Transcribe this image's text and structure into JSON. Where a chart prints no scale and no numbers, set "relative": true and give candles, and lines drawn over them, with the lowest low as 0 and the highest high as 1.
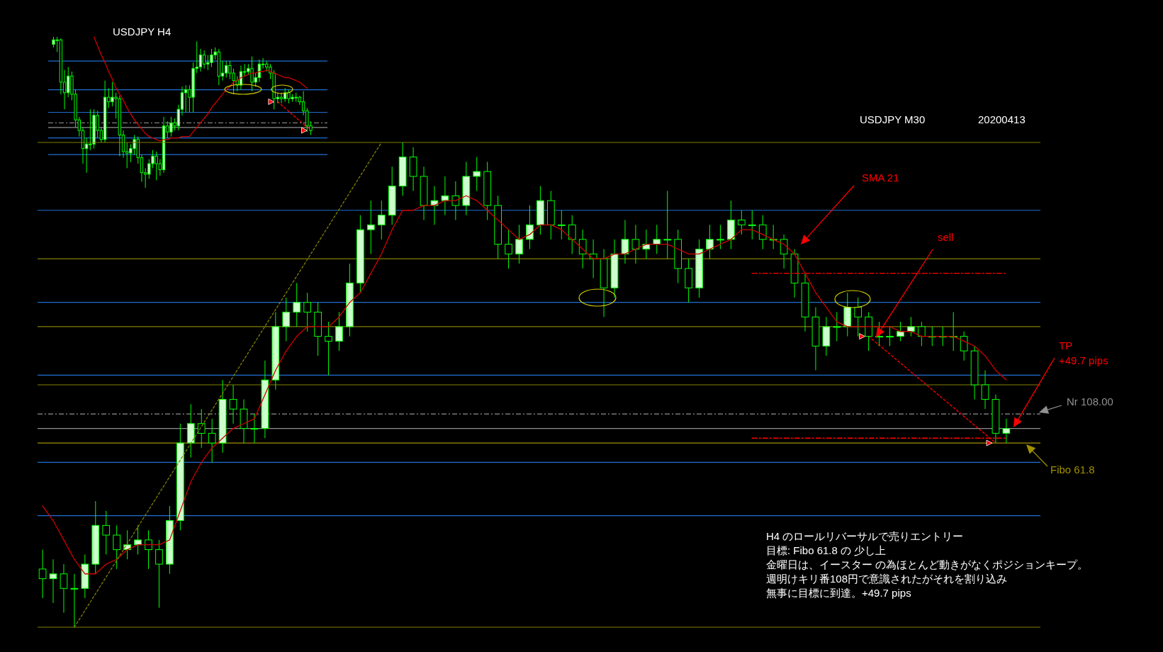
{
  "chart_data": [
    {
      "type": "candlestick",
      "title": "USDJPY H4",
      "relative": true,
      "tick_labels": false,
      "color": "#00ff00",
      "categories": [
        null,
        null,
        null,
        null,
        null,
        null,
        null,
        null,
        null,
        null,
        null,
        null,
        null,
        null,
        null,
        null,
        null,
        null,
        null,
        null,
        null,
        null,
        null,
        null,
        null,
        null,
        null,
        null,
        null,
        null,
        null,
        null,
        null,
        null,
        null,
        null,
        null,
        null,
        null,
        null,
        null,
        null,
        null,
        null,
        null,
        null,
        null,
        null,
        null,
        null,
        null,
        null,
        null,
        null,
        null,
        null,
        null,
        null,
        null,
        null,
        null,
        null,
        null,
        null,
        null,
        null,
        null,
        null,
        null,
        null,
        null
      ],
      "ohlc": [
        [
          0.95,
          1.0,
          0.93,
          0.98
        ],
        [
          0.98,
          1.0,
          0.9,
          0.98
        ],
        [
          0.98,
          0.99,
          0.62,
          0.7
        ],
        [
          0.7,
          0.78,
          0.52,
          0.63
        ],
        [
          0.63,
          0.8,
          0.6,
          0.74
        ],
        [
          0.74,
          0.77,
          0.58,
          0.62
        ],
        [
          0.62,
          0.65,
          0.4,
          0.45
        ],
        [
          0.45,
          0.47,
          0.34,
          0.38
        ],
        [
          0.38,
          0.4,
          0.16,
          0.26
        ],
        [
          0.26,
          0.33,
          0.1,
          0.29
        ],
        [
          0.29,
          0.52,
          0.25,
          0.29
        ],
        [
          0.29,
          0.52,
          0.26,
          0.48
        ],
        [
          0.48,
          0.51,
          0.33,
          0.38
        ],
        [
          0.38,
          0.4,
          0.3,
          0.32
        ],
        [
          0.32,
          0.71,
          0.3,
          0.6
        ],
        [
          0.6,
          0.66,
          0.53,
          0.57
        ],
        [
          0.57,
          0.7,
          0.54,
          0.6
        ],
        [
          0.6,
          0.63,
          0.46,
          0.59
        ],
        [
          0.59,
          0.61,
          0.21,
          0.35
        ],
        [
          0.35,
          0.38,
          0.2,
          0.24
        ],
        [
          0.24,
          0.3,
          0.13,
          0.23
        ],
        [
          0.23,
          0.29,
          0.17,
          0.26
        ],
        [
          0.26,
          0.35,
          0.22,
          0.32
        ],
        [
          0.32,
          0.34,
          0.16,
          0.2
        ],
        [
          0.2,
          0.22,
          0.04,
          0.1
        ],
        [
          0.1,
          0.13,
          0.0,
          0.09
        ],
        [
          0.09,
          0.19,
          0.06,
          0.16
        ],
        [
          0.16,
          0.25,
          0.13,
          0.21
        ],
        [
          0.21,
          0.24,
          0.05,
          0.16
        ],
        [
          0.16,
          0.19,
          0.08,
          0.12
        ],
        [
          0.12,
          0.47,
          0.1,
          0.41
        ],
        [
          0.41,
          0.44,
          0.33,
          0.37
        ],
        [
          0.37,
          0.47,
          0.34,
          0.43
        ],
        [
          0.43,
          0.46,
          0.38,
          0.41
        ],
        [
          0.41,
          0.55,
          0.38,
          0.52
        ],
        [
          0.52,
          0.67,
          0.48,
          0.63
        ],
        [
          0.63,
          0.68,
          0.5,
          0.65
        ],
        [
          0.65,
          0.68,
          0.5,
          0.6
        ],
        [
          0.6,
          0.83,
          0.5,
          0.79
        ],
        [
          0.79,
          0.97,
          0.76,
          0.8
        ],
        [
          0.8,
          0.92,
          0.77,
          0.88
        ],
        [
          0.88,
          0.91,
          0.79,
          0.82
        ],
        [
          0.82,
          0.88,
          0.78,
          0.83
        ],
        [
          0.83,
          0.92,
          0.8,
          0.88
        ],
        [
          0.88,
          0.93,
          0.85,
          0.9
        ],
        [
          0.9,
          0.92,
          0.68,
          0.74
        ],
        [
          0.74,
          0.84,
          0.71,
          0.76
        ],
        [
          0.76,
          0.84,
          0.73,
          0.81
        ],
        [
          0.81,
          0.84,
          0.72,
          0.76
        ],
        [
          0.76,
          0.79,
          0.62,
          0.71
        ],
        [
          0.71,
          0.74,
          0.64,
          0.68
        ],
        [
          0.68,
          0.81,
          0.65,
          0.77
        ],
        [
          0.77,
          0.82,
          0.74,
          0.77
        ],
        [
          0.77,
          0.82,
          0.75,
          0.79
        ],
        [
          0.79,
          0.87,
          0.64,
          0.7
        ],
        [
          0.7,
          0.76,
          0.67,
          0.73
        ],
        [
          0.73,
          0.85,
          0.7,
          0.82
        ],
        [
          0.82,
          0.86,
          0.79,
          0.82
        ],
        [
          0.82,
          0.84,
          0.77,
          0.8
        ],
        [
          0.8,
          0.82,
          0.72,
          0.76
        ],
        [
          0.76,
          0.78,
          0.52,
          0.59
        ],
        [
          0.59,
          0.63,
          0.56,
          0.6
        ],
        [
          0.6,
          0.63,
          0.56,
          0.59
        ],
        [
          0.59,
          0.66,
          0.57,
          0.63
        ],
        [
          0.63,
          0.65,
          0.56,
          0.59
        ],
        [
          0.59,
          0.62,
          0.57,
          0.6
        ],
        [
          0.6,
          0.63,
          0.57,
          0.6
        ],
        [
          0.6,
          0.61,
          0.55,
          0.57
        ],
        [
          0.57,
          0.64,
          0.48,
          0.51
        ],
        [
          0.51,
          0.53,
          0.37,
          0.41
        ],
        [
          0.41,
          0.44,
          0.35,
          0.38
        ]
      ],
      "series": [
        {
          "type": "line",
          "color": "#d00000",
          "values": [
            null,
            null,
            null,
            null,
            null,
            null,
            null,
            null,
            null,
            null,
            null,
            1.0,
            0.94,
            0.88,
            0.83,
            0.77,
            0.72,
            0.66,
            0.62,
            0.58,
            0.53,
            0.49,
            0.45,
            0.42,
            0.39,
            0.36,
            0.34,
            0.33,
            0.32,
            0.31,
            0.32,
            0.32,
            0.33,
            0.33,
            0.33,
            0.34,
            0.34,
            0.34,
            0.37,
            0.4,
            0.43,
            0.46,
            0.49,
            0.53,
            0.56,
            0.59,
            0.62,
            0.65,
            0.67,
            0.7,
            0.71,
            0.73,
            0.74,
            0.75,
            0.76,
            0.76,
            0.77,
            0.77,
            0.78,
            0.77,
            0.76,
            0.75,
            0.74,
            0.73,
            0.73,
            0.72,
            0.71,
            0.7,
            0.68,
            0.66,
            null
          ]
        },
        {
          "type": "line",
          "color": "#ff0000",
          "line_style": "dotted",
          "values": [
            null,
            null,
            null,
            null,
            null,
            null,
            null,
            null,
            null,
            null,
            null,
            null,
            null,
            null,
            null,
            null,
            null,
            null,
            null,
            null,
            null,
            null,
            null,
            null,
            null,
            null,
            null,
            null,
            null,
            null,
            null,
            null,
            null,
            null,
            null,
            null,
            null,
            null,
            null,
            null,
            null,
            null,
            null,
            null,
            null,
            null,
            null,
            null,
            null,
            null,
            null,
            null,
            null,
            null,
            null,
            null,
            null,
            null,
            null,
            null,
            null,
            0.57,
            null,
            null,
            null,
            null,
            null,
            null,
            null,
            null,
            0.38
          ]
        }
      ],
      "ref_lines": [
        {
          "axis": "y",
          "value": 0.84,
          "color": "#1f6fd0"
        },
        {
          "axis": "y",
          "value": 0.65,
          "color": "#1f6fd0"
        },
        {
          "axis": "y",
          "value": 0.5,
          "color": "#1f6fd0"
        },
        {
          "axis": "y",
          "value": 0.33,
          "color": "#1f6fd0"
        },
        {
          "axis": "y",
          "value": 0.22,
          "color": "#1f6fd0"
        },
        {
          "axis": "y",
          "value": 0.43,
          "color": "#808080",
          "line_style": "dashed"
        },
        {
          "axis": "y",
          "value": 0.4,
          "color": "#909090"
        }
      ]
    },
    {
      "type": "candlestick",
      "title": "USDJPY M30",
      "subtitle": "20200413",
      "relative": true,
      "tick_labels": false,
      "color": "#00ff00",
      "categories": [
        null,
        null,
        null,
        null,
        null,
        null,
        null,
        null,
        null,
        null,
        null,
        null,
        null,
        null,
        null,
        null,
        null,
        null,
        null,
        null,
        null,
        null,
        null,
        null,
        null,
        null,
        null,
        null,
        null,
        null,
        null,
        null,
        null,
        null,
        null,
        null,
        null,
        null,
        null,
        null,
        null,
        null,
        null,
        null,
        null,
        null,
        null,
        null,
        null,
        null,
        null,
        null,
        null,
        null,
        null,
        null,
        null,
        null,
        null,
        null,
        null,
        null,
        null,
        null,
        null,
        null,
        null,
        null,
        null,
        null,
        null,
        null,
        null,
        null,
        null,
        null,
        null,
        null,
        null,
        null,
        null,
        null,
        null,
        null,
        null,
        null,
        null,
        null,
        null,
        null,
        null,
        null
      ],
      "ohlc": [
        [
          0.12,
          0.16,
          0.06,
          0.1
        ],
        [
          0.1,
          0.14,
          0.05,
          0.11
        ],
        [
          0.11,
          0.13,
          0.03,
          0.08
        ],
        [
          0.08,
          0.11,
          0.0,
          0.08
        ],
        [
          0.08,
          0.15,
          0.06,
          0.13
        ],
        [
          0.13,
          0.26,
          0.11,
          0.21
        ],
        [
          0.21,
          0.24,
          0.15,
          0.19
        ],
        [
          0.19,
          0.21,
          0.12,
          0.16
        ],
        [
          0.16,
          0.2,
          0.14,
          0.17
        ],
        [
          0.17,
          0.21,
          0.15,
          0.18
        ],
        [
          0.18,
          0.2,
          0.12,
          0.16
        ],
        [
          0.16,
          0.18,
          0.04,
          0.13
        ],
        [
          0.13,
          0.25,
          0.11,
          0.22
        ],
        [
          0.22,
          0.42,
          0.2,
          0.38
        ],
        [
          0.38,
          0.46,
          0.35,
          0.42
        ],
        [
          0.42,
          0.45,
          0.37,
          0.4
        ],
        [
          0.4,
          0.43,
          0.34,
          0.38
        ],
        [
          0.38,
          0.51,
          0.36,
          0.47
        ],
        [
          0.47,
          0.5,
          0.42,
          0.45
        ],
        [
          0.45,
          0.47,
          0.38,
          0.41
        ],
        [
          0.41,
          0.44,
          0.38,
          0.41
        ],
        [
          0.41,
          0.55,
          0.39,
          0.51
        ],
        [
          0.51,
          0.65,
          0.49,
          0.62
        ],
        [
          0.62,
          0.68,
          0.59,
          0.65
        ],
        [
          0.65,
          0.71,
          0.62,
          0.67
        ],
        [
          0.67,
          0.69,
          0.61,
          0.65
        ],
        [
          0.65,
          0.67,
          0.56,
          0.6
        ],
        [
          0.6,
          0.63,
          0.52,
          0.59
        ],
        [
          0.59,
          0.65,
          0.57,
          0.62
        ],
        [
          0.62,
          0.75,
          0.6,
          0.71
        ],
        [
          0.71,
          0.85,
          0.69,
          0.82
        ],
        [
          0.82,
          0.88,
          0.77,
          0.83
        ],
        [
          0.83,
          0.88,
          0.8,
          0.85
        ],
        [
          0.85,
          0.95,
          0.83,
          0.91
        ],
        [
          0.91,
          1.0,
          0.89,
          0.97
        ],
        [
          0.97,
          0.99,
          0.9,
          0.93
        ],
        [
          0.93,
          0.95,
          0.84,
          0.87
        ],
        [
          0.87,
          0.91,
          0.83,
          0.88
        ],
        [
          0.88,
          0.93,
          0.85,
          0.89
        ],
        [
          0.89,
          0.92,
          0.84,
          0.87
        ],
        [
          0.87,
          0.96,
          0.85,
          0.93
        ],
        [
          0.93,
          0.97,
          0.9,
          0.94
        ],
        [
          0.94,
          0.96,
          0.84,
          0.87
        ],
        [
          0.87,
          0.89,
          0.76,
          0.79
        ],
        [
          0.79,
          0.82,
          0.74,
          0.77
        ],
        [
          0.77,
          0.83,
          0.75,
          0.8
        ],
        [
          0.8,
          0.87,
          0.78,
          0.83
        ],
        [
          0.83,
          0.91,
          0.81,
          0.88
        ],
        [
          0.88,
          0.9,
          0.8,
          0.83
        ],
        [
          0.83,
          0.86,
          0.8,
          0.83
        ],
        [
          0.83,
          0.85,
          0.77,
          0.8
        ],
        [
          0.8,
          0.82,
          0.74,
          0.77
        ],
        [
          0.77,
          0.8,
          0.72,
          0.76
        ],
        [
          0.76,
          0.78,
          0.64,
          0.7
        ],
        [
          0.7,
          0.8,
          0.68,
          0.77
        ],
        [
          0.77,
          0.84,
          0.75,
          0.8
        ],
        [
          0.8,
          0.83,
          0.75,
          0.78
        ],
        [
          0.78,
          0.82,
          0.76,
          0.79
        ],
        [
          0.79,
          0.83,
          0.77,
          0.8
        ],
        [
          0.8,
          0.9,
          0.76,
          0.8
        ],
        [
          0.8,
          0.82,
          0.71,
          0.74
        ],
        [
          0.74,
          0.76,
          0.67,
          0.7
        ],
        [
          0.7,
          0.8,
          0.68,
          0.78
        ],
        [
          0.78,
          0.83,
          0.76,
          0.8
        ],
        [
          0.8,
          0.83,
          0.78,
          0.8
        ],
        [
          0.8,
          0.88,
          0.78,
          0.84
        ],
        [
          0.84,
          0.86,
          0.81,
          0.83
        ],
        [
          0.83,
          0.86,
          0.8,
          0.83
        ],
        [
          0.83,
          0.85,
          0.78,
          0.8
        ],
        [
          0.8,
          0.83,
          0.78,
          0.8
        ],
        [
          0.8,
          0.81,
          0.74,
          0.77
        ],
        [
          0.77,
          0.78,
          0.68,
          0.71
        ],
        [
          0.71,
          0.73,
          0.61,
          0.64
        ],
        [
          0.64,
          0.66,
          0.53,
          0.58
        ],
        [
          0.58,
          0.64,
          0.56,
          0.62
        ],
        [
          0.62,
          0.65,
          0.59,
          0.62
        ],
        [
          0.62,
          0.69,
          0.6,
          0.66
        ],
        [
          0.66,
          0.68,
          0.6,
          0.64
        ],
        [
          0.64,
          0.65,
          0.57,
          0.6
        ],
        [
          0.6,
          0.63,
          0.58,
          0.6
        ],
        [
          0.6,
          0.62,
          0.58,
          0.6
        ],
        [
          0.6,
          0.63,
          0.59,
          0.61
        ],
        [
          0.61,
          0.64,
          0.6,
          0.62
        ],
        [
          0.62,
          0.63,
          0.58,
          0.6
        ],
        [
          0.6,
          0.62,
          0.58,
          0.6
        ],
        [
          0.6,
          0.62,
          0.58,
          0.6
        ],
        [
          0.6,
          0.65,
          0.57,
          0.6
        ],
        [
          0.6,
          0.61,
          0.55,
          0.57
        ],
        [
          0.57,
          0.58,
          0.47,
          0.5
        ],
        [
          0.5,
          0.53,
          0.45,
          0.47
        ],
        [
          0.47,
          0.48,
          0.38,
          0.4
        ],
        [
          0.4,
          0.43,
          0.38,
          0.41
        ]
      ],
      "series": [
        {
          "name": "SMA 21",
          "type": "line",
          "color": "#d00000",
          "values": [
            0.25,
            0.22,
            0.18,
            0.14,
            0.11,
            0.11,
            0.13,
            0.14,
            0.16,
            0.17,
            0.17,
            0.17,
            0.18,
            0.24,
            0.3,
            0.34,
            0.37,
            0.39,
            0.41,
            0.42,
            0.43,
            0.48,
            0.53,
            0.57,
            0.6,
            0.62,
            0.62,
            0.62,
            0.64,
            0.67,
            0.69,
            0.73,
            0.77,
            0.82,
            0.86,
            0.86,
            0.87,
            0.87,
            0.88,
            0.88,
            0.89,
            0.88,
            0.86,
            0.84,
            0.82,
            0.8,
            0.81,
            0.83,
            0.83,
            0.82,
            0.8,
            0.78,
            0.76,
            0.76,
            0.77,
            0.77,
            0.78,
            0.79,
            0.79,
            0.79,
            0.78,
            0.77,
            0.77,
            0.78,
            0.79,
            0.8,
            0.82,
            0.82,
            0.81,
            0.8,
            0.79,
            0.77,
            0.73,
            0.69,
            0.66,
            0.63,
            0.62,
            0.62,
            0.62,
            0.62,
            0.62,
            0.61,
            0.61,
            0.6,
            0.6,
            0.6,
            0.6,
            0.59,
            0.58,
            0.56,
            0.53,
            0.51
          ]
        },
        {
          "type": "line",
          "color": "#808000",
          "line_style": "dotted",
          "values": [
            null,
            null,
            null,
            0.0,
            null,
            null,
            null,
            null,
            null,
            null,
            null,
            null,
            null,
            null,
            null,
            null,
            null,
            null,
            null,
            null,
            null,
            null,
            null,
            null,
            null,
            null,
            null,
            null,
            null,
            null,
            null,
            null,
            1.0,
            null,
            null,
            null,
            null,
            null,
            null,
            null,
            null,
            null,
            null,
            null,
            null,
            null,
            null,
            null,
            null,
            null,
            null,
            null,
            null,
            null,
            null,
            null,
            null,
            null,
            null,
            null,
            null,
            null,
            null,
            null,
            null,
            null,
            null,
            null,
            null,
            null,
            null,
            null,
            null,
            null,
            null,
            null,
            null,
            null,
            null,
            null,
            null,
            null,
            null,
            null,
            null,
            null,
            null,
            null,
            null,
            null,
            null,
            null
          ]
        },
        {
          "type": "line",
          "color": "#ff0000",
          "line_style": "dotted",
          "values": [
            null,
            null,
            null,
            null,
            null,
            null,
            null,
            null,
            null,
            null,
            null,
            null,
            null,
            null,
            null,
            null,
            null,
            null,
            null,
            null,
            null,
            null,
            null,
            null,
            null,
            null,
            null,
            null,
            null,
            null,
            null,
            null,
            null,
            null,
            null,
            null,
            null,
            null,
            null,
            null,
            null,
            null,
            null,
            null,
            null,
            null,
            null,
            null,
            null,
            null,
            null,
            null,
            null,
            null,
            null,
            null,
            null,
            null,
            null,
            null,
            null,
            null,
            null,
            null,
            null,
            null,
            null,
            null,
            null,
            null,
            null,
            null,
            null,
            null,
            null,
            null,
            null,
            null,
            0.6,
            null,
            null,
            null,
            null,
            null,
            null,
            null,
            null,
            null,
            null,
            null,
            0.38,
            null
          ]
        },
        {
          "type": "line",
          "color": "#ff0000",
          "line_style": "dashed",
          "values": [
            null,
            null,
            null,
            null,
            null,
            null,
            null,
            null,
            null,
            null,
            null,
            null,
            null,
            null,
            null,
            null,
            null,
            null,
            null,
            null,
            null,
            null,
            null,
            null,
            null,
            null,
            null,
            null,
            null,
            null,
            null,
            null,
            null,
            null,
            null,
            null,
            null,
            null,
            null,
            null,
            null,
            null,
            null,
            null,
            null,
            null,
            null,
            null,
            null,
            null,
            null,
            null,
            null,
            null,
            null,
            null,
            null,
            null,
            null,
            null,
            null,
            null,
            null,
            null,
            null,
            null,
            null,
            0.73,
            0.73,
            0.73,
            0.73,
            0.73,
            0.73,
            0.73,
            0.73,
            0.73,
            0.73,
            0.73,
            0.73,
            0.73,
            0.73,
            0.73,
            0.73,
            0.73,
            0.73,
            0.73,
            0.73,
            0.73,
            0.73,
            0.73,
            0.73,
            0.73
          ]
        },
        {
          "type": "line",
          "color": "#ff0000",
          "line_style": "dashed",
          "values": [
            null,
            null,
            null,
            null,
            null,
            null,
            null,
            null,
            null,
            null,
            null,
            null,
            null,
            null,
            null,
            null,
            null,
            null,
            null,
            null,
            null,
            null,
            null,
            null,
            null,
            null,
            null,
            null,
            null,
            null,
            null,
            null,
            null,
            null,
            null,
            null,
            null,
            null,
            null,
            null,
            null,
            null,
            null,
            null,
            null,
            null,
            null,
            null,
            null,
            null,
            null,
            null,
            null,
            null,
            null,
            null,
            null,
            null,
            null,
            null,
            null,
            null,
            null,
            null,
            null,
            null,
            null,
            0.39,
            0.39,
            0.39,
            0.39,
            0.39,
            0.39,
            0.39,
            0.39,
            0.39,
            0.39,
            0.39,
            0.39,
            0.39,
            0.39,
            0.39,
            0.39,
            0.39,
            0.39,
            0.39,
            0.39,
            0.39,
            0.39,
            0.39,
            0.39,
            0.39
          ]
        }
      ],
      "ref_lines": [
        {
          "axis": "y",
          "value": 0.86,
          "color": "#1f6fd0"
        },
        {
          "axis": "y",
          "value": 0.67,
          "color": "#1f6fd0"
        },
        {
          "axis": "y",
          "value": 0.52,
          "color": "#1f6fd0"
        },
        {
          "axis": "y",
          "value": 0.34,
          "color": "#1f6fd0"
        },
        {
          "axis": "y",
          "value": 0.23,
          "color": "#1f6fd0"
        },
        {
          "axis": "y",
          "value": 1.0,
          "color": "#808000"
        },
        {
          "axis": "y",
          "value": 0.76,
          "color": "#808000"
        },
        {
          "axis": "y",
          "value": 0.62,
          "color": "#808000"
        },
        {
          "axis": "y",
          "value": 0.5,
          "color": "#808000"
        },
        {
          "axis": "y",
          "value": 0.0,
          "color": "#808000"
        },
        {
          "axis": "y",
          "value": 0.41,
          "color": "#909090"
        },
        {
          "axis": "y",
          "value": 0.44,
          "color": "#909090",
          "line_style": "dashed",
          "label": "Nr 108.00"
        },
        {
          "axis": "y",
          "value": 0.38,
          "color": "#a09000",
          "label": "Fibo 61.8"
        }
      ],
      "annotations": [
        "sell",
        "TP",
        "+49.7 pips",
        "H4 のロールリバーサルで売りエントリー",
        "目標: Fibo 61.8 の 少し上",
        "金曜日は、イースター の為ほとんど動きがなくポジションキープ。",
        "週明けキリ番108円で意識されたがそれを割り込み",
        "無事に目標に到達。+49.7 pips"
      ]
    }
  ]
}
